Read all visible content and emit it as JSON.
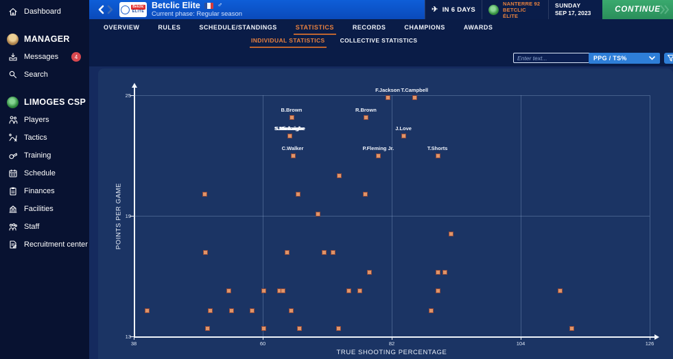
{
  "colors": {
    "accent_orange": "#e8813f",
    "continue_green": "#2fa46a",
    "topbar_blue": "#0d57cd",
    "dropdown_blue": "#2e7ed8",
    "marker_orange": "#e09468",
    "badge_red": "#d9484f"
  },
  "sidebar": {
    "items": [
      {
        "label": "Dashboard",
        "icon": "home-icon",
        "type": "item"
      },
      {
        "label": "MANAGER",
        "icon": "manager-avatar",
        "type": "header"
      },
      {
        "label": "Messages",
        "icon": "messages-icon",
        "type": "item",
        "badge": "4"
      },
      {
        "label": "Search",
        "icon": "search-icon",
        "type": "item"
      },
      {
        "label": "LIMOGES CSP",
        "icon": "club-logo",
        "type": "header"
      },
      {
        "label": "Players",
        "icon": "players-icon",
        "type": "item"
      },
      {
        "label": "Tactics",
        "icon": "tactics-icon",
        "type": "item"
      },
      {
        "label": "Training",
        "icon": "training-icon",
        "type": "item"
      },
      {
        "label": "Schedule",
        "icon": "schedule-icon",
        "type": "item"
      },
      {
        "label": "Finances",
        "icon": "finances-icon",
        "type": "item"
      },
      {
        "label": "Facilities",
        "icon": "facilities-icon",
        "type": "item"
      },
      {
        "label": "Staff",
        "icon": "staff-icon",
        "type": "item"
      },
      {
        "label": "Recruitment center",
        "icon": "recruitment-icon",
        "type": "item"
      }
    ]
  },
  "topbar": {
    "league_name": "Betclic Elite",
    "league_logo_text_top": "Betclic",
    "league_logo_text_bottom": "ÉLITE",
    "phase_label": "Current phase: Regular season",
    "next_match": {
      "in_days_label": "IN 6 DAYS",
      "opponent": "NANTERRE 92",
      "competition": "BETCLIC ÉLITE"
    },
    "date": {
      "day": "SUNDAY",
      "date": "SEP 17, 2023"
    },
    "continue_label": "CONTINUE"
  },
  "nav": {
    "tabs": [
      {
        "label": "OVERVIEW",
        "active": false
      },
      {
        "label": "RULES",
        "active": false
      },
      {
        "label": "SCHEDULE/STANDINGS",
        "active": false
      },
      {
        "label": "STATISTICS",
        "active": true
      },
      {
        "label": "RECORDS",
        "active": false
      },
      {
        "label": "CHAMPIONS",
        "active": false
      },
      {
        "label": "AWARDS",
        "active": false
      }
    ],
    "subtabs": [
      {
        "label": "INDIVIDUAL STATISTICS",
        "active": true
      },
      {
        "label": "COLLECTIVE STATISTICS",
        "active": false
      }
    ]
  },
  "filters": {
    "search_placeholder": "Enter text...",
    "stat_selector_value": "PPG / TS%"
  },
  "chart_data": {
    "type": "scatter",
    "xlabel": "TRUE SHOOTING PERCENTAGE",
    "ylabel": "POINTS PER GAME",
    "xlim": [
      38,
      126
    ],
    "ylim": [
      13,
      25
    ],
    "x_ticks": [
      38,
      60,
      82,
      104,
      126
    ],
    "y_ticks": [
      13,
      19,
      25
    ],
    "grid": true,
    "marker_color": "#e09468",
    "points": [
      {
        "ts": 81.3,
        "ppg": 24.9,
        "label": "F.Jackson"
      },
      {
        "ts": 85.9,
        "ppg": 24.9,
        "label": "T.Campbell"
      },
      {
        "ts": 64.9,
        "ppg": 23.9,
        "label": "B.Brown"
      },
      {
        "ts": 77.6,
        "ppg": 23.9,
        "label": "R.Brown"
      },
      {
        "ts": 64.6,
        "ppg": 23.0,
        "label": "S.Minkaigbe",
        "overlap": true
      },
      {
        "ts": 84.0,
        "ppg": 23.0,
        "label": "J.Love"
      },
      {
        "ts": 65.1,
        "ppg": 22.0,
        "label": "C.Walker"
      },
      {
        "ts": 79.7,
        "ppg": 22.0,
        "label": "P.Fleming Jr."
      },
      {
        "ts": 89.8,
        "ppg": 22.0,
        "label": "T.Shorts"
      },
      {
        "ts": 73.0,
        "ppg": 21.0
      },
      {
        "ts": 50.1,
        "ppg": 20.1
      },
      {
        "ts": 66.0,
        "ppg": 20.1
      },
      {
        "ts": 77.4,
        "ppg": 20.1
      },
      {
        "ts": 69.4,
        "ppg": 19.1
      },
      {
        "ts": 92.1,
        "ppg": 18.1
      },
      {
        "ts": 50.2,
        "ppg": 17.2
      },
      {
        "ts": 64.1,
        "ppg": 17.2
      },
      {
        "ts": 70.4,
        "ppg": 17.2
      },
      {
        "ts": 71.9,
        "ppg": 17.2
      },
      {
        "ts": 78.1,
        "ppg": 16.2
      },
      {
        "ts": 89.8,
        "ppg": 16.2
      },
      {
        "ts": 91.0,
        "ppg": 16.2
      },
      {
        "ts": 54.2,
        "ppg": 15.3
      },
      {
        "ts": 60.1,
        "ppg": 15.3
      },
      {
        "ts": 62.8,
        "ppg": 15.3
      },
      {
        "ts": 63.4,
        "ppg": 15.3
      },
      {
        "ts": 74.6,
        "ppg": 15.3
      },
      {
        "ts": 76.5,
        "ppg": 15.3
      },
      {
        "ts": 89.8,
        "ppg": 15.3
      },
      {
        "ts": 110.7,
        "ppg": 15.3
      },
      {
        "ts": 40.2,
        "ppg": 14.3
      },
      {
        "ts": 51.0,
        "ppg": 14.3
      },
      {
        "ts": 54.6,
        "ppg": 14.3
      },
      {
        "ts": 58.1,
        "ppg": 14.3
      },
      {
        "ts": 64.8,
        "ppg": 14.3
      },
      {
        "ts": 88.7,
        "ppg": 14.3
      },
      {
        "ts": 50.5,
        "ppg": 13.4
      },
      {
        "ts": 60.1,
        "ppg": 13.4
      },
      {
        "ts": 66.2,
        "ppg": 13.4
      },
      {
        "ts": 72.9,
        "ppg": 13.4
      },
      {
        "ts": 112.7,
        "ppg": 13.4
      }
    ]
  }
}
